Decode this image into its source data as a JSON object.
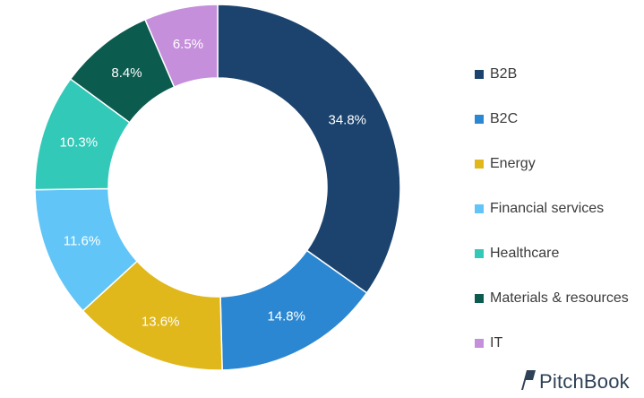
{
  "chart_data": {
    "type": "pie",
    "categories": [
      "B2B",
      "B2C",
      "Energy",
      "Financial services",
      "Healthcare",
      "Materials & resources",
      "IT"
    ],
    "values": [
      34.8,
      14.8,
      13.6,
      11.6,
      10.3,
      8.4,
      6.5
    ],
    "labels": [
      "34.8%",
      "14.8%",
      "13.6%",
      "11.6%",
      "10.3%",
      "8.4%",
      "6.5%"
    ],
    "colors": [
      "#1b436d",
      "#2b87d1",
      "#e0b81c",
      "#62c5f7",
      "#33c9b8",
      "#0c5b4f",
      "#c58fdb"
    ],
    "donut": true,
    "legend_position": "right"
  },
  "brand": {
    "name": "PitchBook",
    "icon": "pitchbook-logo-icon"
  }
}
